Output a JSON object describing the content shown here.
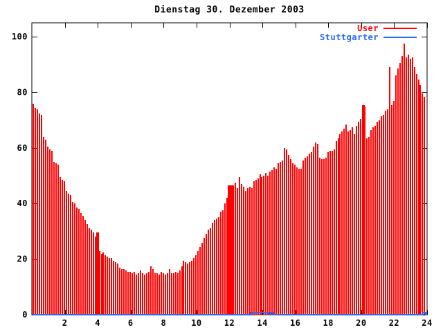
{
  "title": "Dienstag 30. Dezember 2003",
  "legend": {
    "position": "top-right",
    "entries": [
      {
        "label": "User",
        "color": "#ff0000"
      },
      {
        "label": "Stuttgarter",
        "color": "#2468ff"
      }
    ]
  },
  "colors": {
    "user": "#ff0000",
    "stuttgarter": "#2468ff",
    "axis": "#000000",
    "background": "#ffffff"
  },
  "chart_data": {
    "type": "bar",
    "title": "Dienstag 30. Dezember 2003",
    "xlabel": "",
    "ylabel": "",
    "xlim": [
      0,
      24
    ],
    "ylim": [
      0,
      105
    ],
    "x_ticks": [
      2,
      4,
      6,
      8,
      10,
      12,
      14,
      16,
      18,
      20,
      22,
      24
    ],
    "y_ticks": [
      0,
      20,
      40,
      60,
      80,
      100
    ],
    "grid": false,
    "legend_position": "top-right",
    "series": [
      {
        "name": "User",
        "style": "impulses",
        "color": "#ff0000",
        "x_start": 0.1,
        "x_step": 0.125,
        "values": [
          76,
          74.5,
          74,
          72.5,
          72,
          64,
          63,
          60.5,
          59.5,
          59,
          55,
          54.5,
          54,
          49.5,
          48.5,
          48,
          44.5,
          43.5,
          43,
          40.5,
          40,
          38.5,
          38,
          36.5,
          35.5,
          34,
          32.5,
          31,
          30.5,
          29.5,
          28,
          27.5,
          23,
          22,
          22.5,
          21.5,
          21,
          20.5,
          20.5,
          19.5,
          19,
          18.5,
          17,
          16.5,
          16.5,
          16,
          15.5,
          15.5,
          15,
          15.5,
          14.5,
          15,
          16,
          15,
          14.5,
          15,
          15.5,
          17.5,
          16.5,
          15,
          15,
          14.5,
          15.5,
          15,
          14.5,
          15,
          16.5,
          15,
          15,
          15.5,
          15,
          16,
          17.5,
          19.5,
          19,
          18.5,
          19,
          19.5,
          20.5,
          21.5,
          23,
          24.5,
          26,
          27.5,
          29,
          30.5,
          31,
          33,
          34,
          34.5,
          35,
          37,
          37.5,
          40,
          42,
          44.5,
          46.5,
          46,
          47.5,
          45.5,
          49.5,
          47,
          46,
          44.5,
          45.5,
          46,
          45.5,
          48,
          48.5,
          49,
          50.5,
          49.5,
          50,
          51,
          50,
          51.5,
          52,
          53,
          52.5,
          54.5,
          55,
          55.5,
          60,
          59.5,
          57.5,
          56,
          54.5,
          54,
          53,
          52.5,
          52.5,
          55.5,
          56.5,
          57,
          58,
          58.5,
          60.5,
          62,
          61.5,
          56.5,
          56,
          56,
          56.5,
          58.5,
          59,
          59,
          59.5,
          62.5,
          63.5,
          65,
          66,
          67,
          68.5,
          66,
          66.5,
          67.5,
          65,
          68,
          69.5,
          70.5,
          75.5,
          75,
          63.5,
          64,
          66.5,
          67.5,
          68,
          69.5,
          70,
          71.5,
          72,
          73.5,
          74,
          89,
          75.5,
          77,
          86,
          88.5,
          90.5,
          93,
          97.5,
          92.5,
          93.5,
          92,
          92.5,
          89,
          86.5,
          84.5,
          82.5,
          79.5,
          78.5
        ],
        "dense_bands": [
          {
            "x1": 3.92,
            "x2": 4.07,
            "value": 29.5
          },
          {
            "x1": 11.88,
            "x2": 12.26,
            "value": 46.5
          },
          {
            "x1": 20.04,
            "x2": 20.22,
            "value": 75.5
          }
        ]
      },
      {
        "name": "Stuttgarter",
        "style": "line",
        "color": "#2468ff",
        "points": [
          [
            0.05,
            0
          ],
          [
            13.32,
            0
          ],
          [
            13.32,
            0.7
          ],
          [
            14.37,
            0.7
          ],
          [
            14.37,
            0
          ],
          [
            14.5,
            0
          ],
          [
            14.5,
            0.7
          ],
          [
            14.67,
            0.7
          ],
          [
            14.67,
            0
          ],
          [
            23.72,
            0
          ],
          [
            23.72,
            0.8
          ],
          [
            23.9,
            0.8
          ],
          [
            23.9,
            0
          ],
          [
            23.98,
            0
          ]
        ]
      }
    ]
  }
}
